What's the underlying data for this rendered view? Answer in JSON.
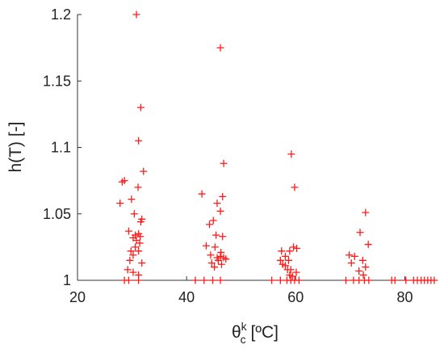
{
  "chart_data": {
    "type": "scatter",
    "title": "",
    "xlabel": {
      "base": "θ",
      "sup": "k",
      "sub": "c",
      "unit": " [ºC]"
    },
    "ylabel": "h(T) [-]",
    "xlim": [
      20,
      86
    ],
    "ylim": [
      1.0,
      1.2
    ],
    "xticks": [
      20,
      40,
      60,
      80
    ],
    "xtick_labels": [
      "20",
      "40",
      "60",
      "80"
    ],
    "yticks": [
      1.0,
      1.05,
      1.1,
      1.15,
      1.2
    ],
    "ytick_labels": [
      "1",
      "1.05",
      "1.1",
      "1.15",
      "1.2"
    ],
    "grid": false,
    "marker": "+",
    "color": "#ff1a1a",
    "series": [
      {
        "name": "",
        "points": [
          [
            30.8,
            1.2
          ],
          [
            31.6,
            1.13
          ],
          [
            31.2,
            1.105
          ],
          [
            32.1,
            1.082
          ],
          [
            28.2,
            1.074
          ],
          [
            28.6,
            1.075
          ],
          [
            31.1,
            1.07
          ],
          [
            27.8,
            1.058
          ],
          [
            29.9,
            1.061
          ],
          [
            30.4,
            1.05
          ],
          [
            31.8,
            1.046
          ],
          [
            31.6,
            1.044
          ],
          [
            29.4,
            1.037
          ],
          [
            30.6,
            1.034
          ],
          [
            31.2,
            1.035
          ],
          [
            30.2,
            1.032
          ],
          [
            31.5,
            1.033
          ],
          [
            30.8,
            1.03
          ],
          [
            31.4,
            1.028
          ],
          [
            30.6,
            1.025
          ],
          [
            29.8,
            1.022
          ],
          [
            31.2,
            1.022
          ],
          [
            30.2,
            1.019
          ],
          [
            29.6,
            1.015
          ],
          [
            31.8,
            1.013
          ],
          [
            29.2,
            1.008
          ],
          [
            30.2,
            1.006
          ],
          [
            31.2,
            1.004
          ],
          [
            28.6,
            1.0
          ],
          [
            29.4,
            1.0
          ],
          [
            31.2,
            1.0
          ],
          [
            46.2,
            1.175
          ],
          [
            46.8,
            1.088
          ],
          [
            42.8,
            1.065
          ],
          [
            46.6,
            1.063
          ],
          [
            45.6,
            1.058
          ],
          [
            46.2,
            1.052
          ],
          [
            44.9,
            1.045
          ],
          [
            44.2,
            1.042
          ],
          [
            45.4,
            1.034
          ],
          [
            46.6,
            1.033
          ],
          [
            43.6,
            1.026
          ],
          [
            45.2,
            1.025
          ],
          [
            46.3,
            1.021
          ],
          [
            44.4,
            1.019
          ],
          [
            45.6,
            1.017
          ],
          [
            46.2,
            1.018
          ],
          [
            46.8,
            1.017
          ],
          [
            47.2,
            1.016
          ],
          [
            45.8,
            1.015
          ],
          [
            44.6,
            1.013
          ],
          [
            46.4,
            1.012
          ],
          [
            45.1,
            1.01
          ],
          [
            41.6,
            1.0
          ],
          [
            43.2,
            1.0
          ],
          [
            44.8,
            1.0
          ],
          [
            46.2,
            1.0
          ],
          [
            59.2,
            1.095
          ],
          [
            59.8,
            1.07
          ],
          [
            59.6,
            1.025
          ],
          [
            60.2,
            1.024
          ],
          [
            58.9,
            1.022
          ],
          [
            57.4,
            1.022
          ],
          [
            58.1,
            1.018
          ],
          [
            57.2,
            1.015
          ],
          [
            58.7,
            1.015
          ],
          [
            57.6,
            1.012
          ],
          [
            58.1,
            1.011
          ],
          [
            58.5,
            1.008
          ],
          [
            59.1,
            1.008
          ],
          [
            60.1,
            1.006
          ],
          [
            58.9,
            1.004
          ],
          [
            59.4,
            1.003
          ],
          [
            55.6,
            1.0
          ],
          [
            57.2,
            1.0
          ],
          [
            58.4,
            1.0
          ],
          [
            59.1,
            1.0
          ],
          [
            59.8,
            1.0
          ],
          [
            60.6,
            1.0
          ],
          [
            72.8,
            1.051
          ],
          [
            71.8,
            1.036
          ],
          [
            73.3,
            1.027
          ],
          [
            69.8,
            1.019
          ],
          [
            70.8,
            1.018
          ],
          [
            72.3,
            1.015
          ],
          [
            70.2,
            1.013
          ],
          [
            72.8,
            1.01
          ],
          [
            71.6,
            1.007
          ],
          [
            72.4,
            1.004
          ],
          [
            69.2,
            1.0
          ],
          [
            70.6,
            1.0
          ],
          [
            71.6,
            1.0
          ],
          [
            72.6,
            1.0
          ],
          [
            73.4,
            1.0
          ],
          [
            77.6,
            1.0
          ],
          [
            78.2,
            1.0
          ],
          [
            80.2,
            1.0
          ],
          [
            81.6,
            1.0
          ],
          [
            82.3,
            1.0
          ],
          [
            83.0,
            1.0
          ],
          [
            83.6,
            1.0
          ],
          [
            84.2,
            1.0
          ],
          [
            84.8,
            1.0
          ],
          [
            85.4,
            1.0
          ]
        ]
      }
    ]
  }
}
